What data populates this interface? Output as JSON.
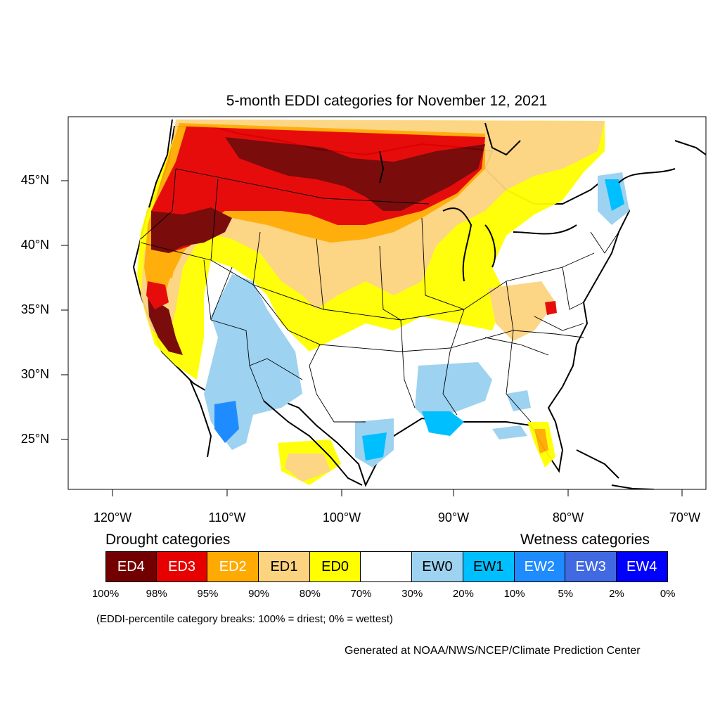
{
  "title": "5-month EDDI categories for November 12, 2021",
  "lat_labels": [
    "45°N",
    "40°N",
    "35°N",
    "30°N",
    "25°N"
  ],
  "lon_labels": [
    "120°W",
    "110°W",
    "100°W",
    "90°W",
    "80°W",
    "70°W"
  ],
  "legend": {
    "drought_heading": "Drought categories",
    "wetness_heading": "Wetness categories",
    "categories": [
      {
        "label": "ED4",
        "color": "#730000",
        "text_color": "#ffffff"
      },
      {
        "label": "ED3",
        "color": "#e60000",
        "text_color": "#ffffff"
      },
      {
        "label": "ED2",
        "color": "#ffaa00",
        "text_color": "#ffffff"
      },
      {
        "label": "ED1",
        "color": "#fcd37f",
        "text_color": "#000000"
      },
      {
        "label": "ED0",
        "color": "#ffff00",
        "text_color": "#000000"
      },
      {
        "label": "",
        "color": "#ffffff",
        "text_color": "#000000"
      },
      {
        "label": "EW0",
        "color": "#9dd2f0",
        "text_color": "#000000"
      },
      {
        "label": "EW1",
        "color": "#00bfff",
        "text_color": "#000000"
      },
      {
        "label": "EW2",
        "color": "#1e8cff",
        "text_color": "#ffffff"
      },
      {
        "label": "EW3",
        "color": "#4169e1",
        "text_color": "#ffffff"
      },
      {
        "label": "EW4",
        "color": "#0000ff",
        "text_color": "#ffffff"
      }
    ],
    "breaks": [
      "100%",
      "98%",
      "95%",
      "90%",
      "80%",
      "70%",
      "30%",
      "20%",
      "10%",
      "5%",
      "2%",
      "0%"
    ]
  },
  "note": "(EDDI-percentile category breaks: 100% = driest; 0% = wettest)",
  "credit": "Generated at NOAA/NWS/NCEP/Climate Prediction Center"
}
